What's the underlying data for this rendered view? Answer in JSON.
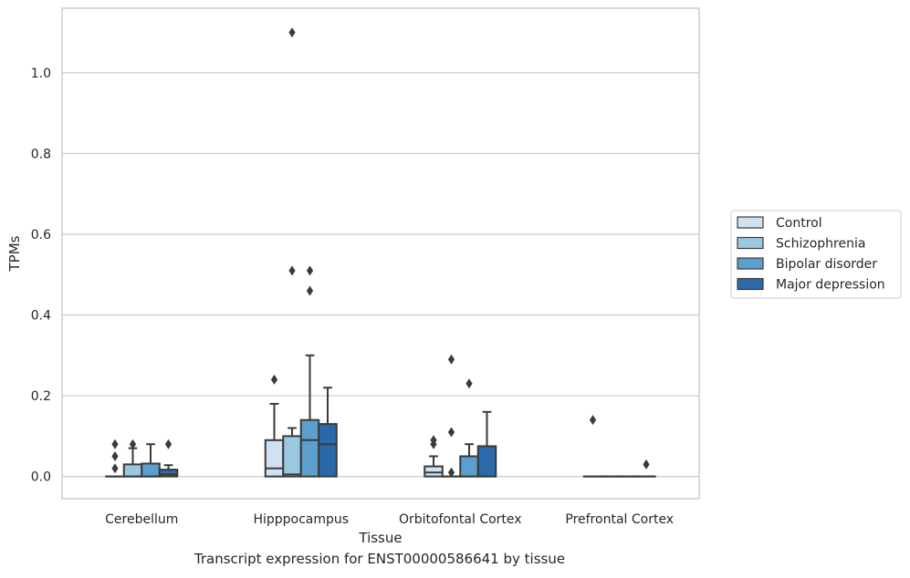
{
  "caption": "Transcript expression for ENST00000586641 by tissue",
  "chart_data": {
    "type": "box",
    "xlabel": "Tissue",
    "ylabel": "TPMs",
    "ylim": [
      -0.055,
      1.16
    ],
    "yticks": [
      0.0,
      0.2,
      0.4,
      0.6,
      0.8,
      1.0
    ],
    "ytick_labels": [
      "0.0",
      "0.2",
      "0.4",
      "0.6",
      "0.8",
      "1.0"
    ],
    "grid": "horizontal",
    "legend_position": "right",
    "categories": [
      "Cerebellum",
      "Hipppocampus",
      "Orbitofontal Cortex",
      "Prefrontal Cortex"
    ],
    "series": [
      {
        "name": "Control",
        "color": "#d0e1f2",
        "boxes": [
          {
            "whislo": 0,
            "q1": 0,
            "med": 0,
            "q3": 0,
            "whishi": 0,
            "fliers": [
              0.02,
              0.05,
              0.08
            ]
          },
          {
            "whislo": 0,
            "q1": 0,
            "med": 0.02,
            "q3": 0.09,
            "whishi": 0.18,
            "fliers": [
              0.24
            ]
          },
          {
            "whislo": 0,
            "q1": 0,
            "med": 0.01,
            "q3": 0.025,
            "whishi": 0.05,
            "fliers": [
              0.08,
              0.09
            ]
          },
          {
            "whislo": 0,
            "q1": 0,
            "med": 0,
            "q3": 0,
            "whishi": 0,
            "fliers": [
              0.14
            ]
          }
        ]
      },
      {
        "name": "Schizophrenia",
        "color": "#9ac8e0",
        "boxes": [
          {
            "whislo": 0,
            "q1": 0,
            "med": 0,
            "q3": 0.03,
            "whishi": 0.07,
            "fliers": [
              0.08
            ]
          },
          {
            "whislo": 0,
            "q1": 0,
            "med": 0.005,
            "q3": 0.1,
            "whishi": 0.12,
            "fliers": [
              0.51,
              1.1
            ]
          },
          {
            "whislo": 0,
            "q1": 0,
            "med": 0,
            "q3": 0,
            "whishi": 0,
            "fliers": [
              0.01,
              0.11,
              0.29
            ]
          },
          {
            "whislo": 0,
            "q1": 0,
            "med": 0,
            "q3": 0,
            "whishi": 0,
            "fliers": []
          }
        ]
      },
      {
        "name": "Bipolar disorder",
        "color": "#5a9fcd",
        "boxes": [
          {
            "whislo": 0,
            "q1": 0,
            "med": 0,
            "q3": 0.032,
            "whishi": 0.08,
            "fliers": []
          },
          {
            "whislo": 0,
            "q1": 0,
            "med": 0.09,
            "q3": 0.14,
            "whishi": 0.3,
            "fliers": [
              0.46,
              0.51
            ]
          },
          {
            "whislo": 0,
            "q1": 0,
            "med": 0,
            "q3": 0.05,
            "whishi": 0.08,
            "fliers": [
              0.23
            ]
          },
          {
            "whislo": 0,
            "q1": 0,
            "med": 0,
            "q3": 0,
            "whishi": 0,
            "fliers": []
          }
        ]
      },
      {
        "name": "Major depression",
        "color": "#2a6aab",
        "boxes": [
          {
            "whislo": 0,
            "q1": 0,
            "med": 0.005,
            "q3": 0.017,
            "whishi": 0.028,
            "fliers": [
              0.08
            ]
          },
          {
            "whislo": 0,
            "q1": 0,
            "med": 0.08,
            "q3": 0.13,
            "whishi": 0.22,
            "fliers": []
          },
          {
            "whislo": 0,
            "q1": 0,
            "med": 0,
            "q3": 0.075,
            "whishi": 0.16,
            "fliers": []
          },
          {
            "whislo": 0,
            "q1": 0,
            "med": 0,
            "q3": 0,
            "whishi": 0,
            "fliers": [
              0.03
            ]
          }
        ]
      }
    ]
  }
}
